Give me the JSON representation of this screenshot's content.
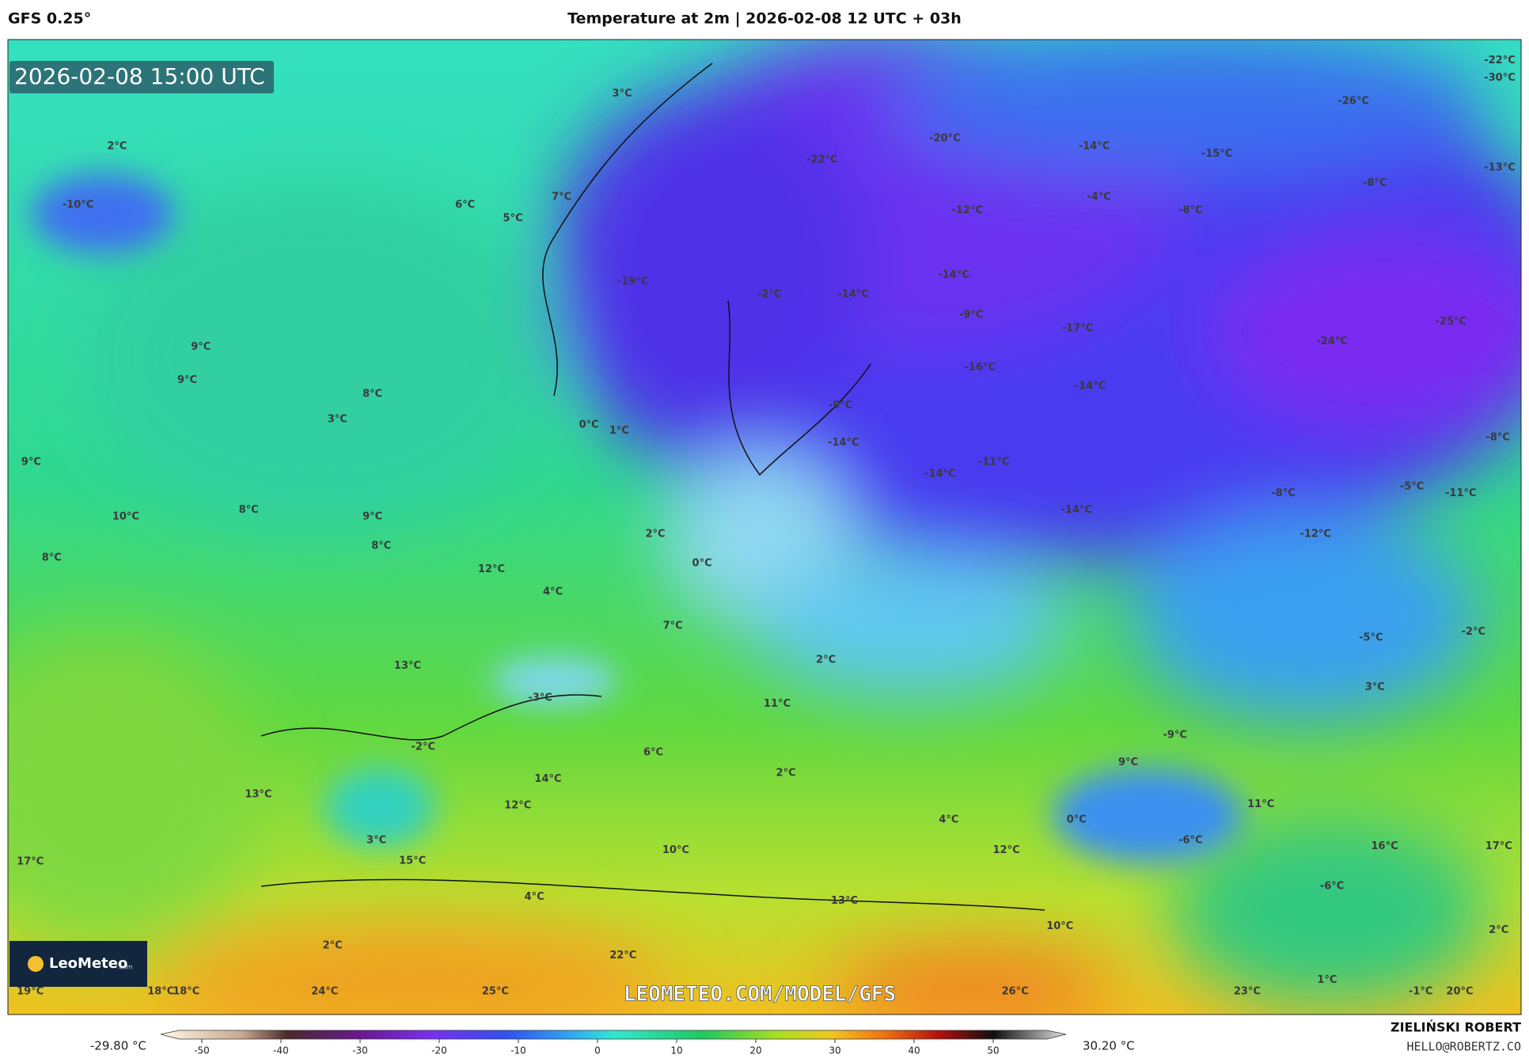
{
  "header": {
    "model": "GFS 0.25°",
    "title": "Temperature at 2m | 2026-02-08 12 UTC + 03h"
  },
  "map": {
    "timestamp": "2026-02-08 15:00 UTC",
    "temperature_labels": [
      "3°C",
      "2°C",
      "-10°C",
      "6°C",
      "5°C",
      "7°C",
      "-22°C",
      "-20°C",
      "-14°C",
      "-15°C",
      "-26°C",
      "-22°C",
      "-30°C",
      "-13°C",
      "-8°C",
      "-4°C",
      "-8°C",
      "-12°C",
      "-19°C",
      "-2°C",
      "-14°C",
      "-14°C",
      "-9°C",
      "-17°C",
      "-24°C",
      "-25°C",
      "9°C",
      "9°C",
      "-16°C",
      "-14°C",
      "8°C",
      "3°C",
      "-9°C",
      "0°C",
      "1°C",
      "-14°C",
      "-8°C",
      "9°C",
      "-11°C",
      "-14°C",
      "-5°C",
      "-8°C",
      "-11°C",
      "10°C",
      "8°C",
      "9°C",
      "-14°C",
      "2°C",
      "-12°C",
      "8°C",
      "8°C",
      "12°C",
      "0°C",
      "4°C",
      "7°C",
      "-5°C",
      "-2°C",
      "13°C",
      "2°C",
      "3°C",
      "-3°C",
      "11°C",
      "-2°C",
      "-9°C",
      "6°C",
      "9°C",
      "14°C",
      "2°C",
      "13°C",
      "12°C",
      "11°C",
      "0°C",
      "4°C",
      "3°C",
      "10°C",
      "12°C",
      "-6°C",
      "16°C",
      "17°C",
      "17°C",
      "15°C",
      "-6°C",
      "4°C",
      "13°C",
      "10°C",
      "2°C",
      "2°C",
      "22°C",
      "1°C",
      "19°C",
      "18°C",
      "18°C",
      "24°C",
      "25°C",
      "26°C",
      "23°C",
      "-1°C",
      "20°C"
    ],
    "watermark": "LEOMETEO.COM/MODEL/GFS",
    "logo": {
      "name": "LeoMeteo",
      "suffix": ".com"
    }
  },
  "colorbar": {
    "min_label": "-29.80 °C",
    "max_label": "30.20 °C",
    "ticks": [
      -50,
      -40,
      -30,
      -20,
      -10,
      0,
      10,
      20,
      30,
      40,
      50
    ]
  },
  "footer": {
    "author": "ZIELIŃSKI ROBERT",
    "contact": "HELLO@ROBERTZ.CO"
  }
}
